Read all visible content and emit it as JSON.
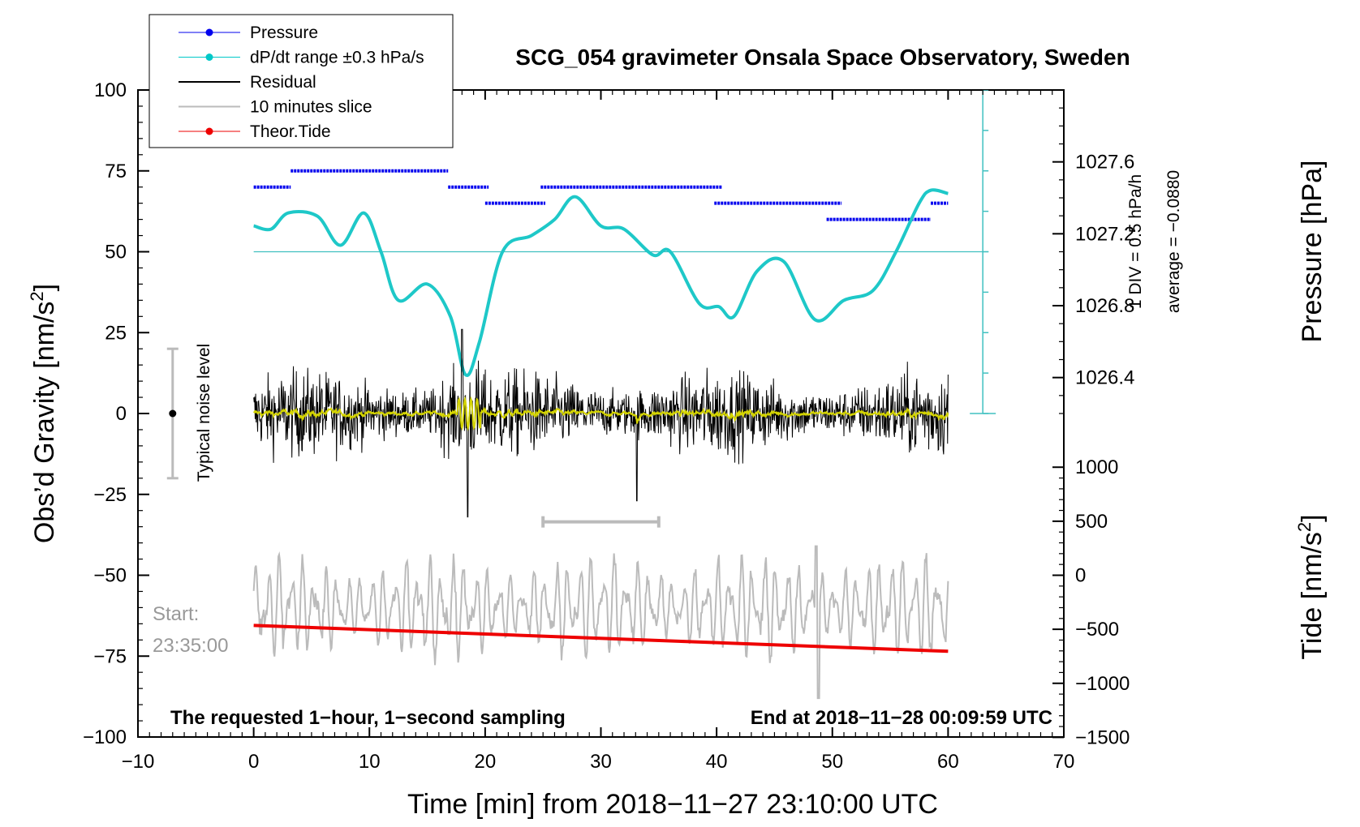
{
  "chart_data": {
    "type": "line",
    "title": "SCG_054 gravimeter Onsala Space Observatory, Sweden",
    "xlabel": "Time [min] from 2018−11−27 23:10:00 UTC",
    "ylabel": "Obs’d Gravity [nm/s²]",
    "ylabel_main": "Obs’d Gravity [nm/s",
    "ylabel_sup": "2",
    "ylabel_end": "]",
    "y2label": "Pressure [hPa]",
    "y3label": "Tide [nm/s²]",
    "y3label_main": "Tide [nm/s",
    "y3label_sup": "2",
    "y3label_end": "]",
    "xlim": [
      -10,
      70
    ],
    "ylim": [
      -100,
      100
    ],
    "xticks": [
      -10,
      0,
      10,
      20,
      30,
      40,
      50,
      60,
      70
    ],
    "xtick_labels": [
      "−10",
      "0",
      "10",
      "20",
      "30",
      "40",
      "50",
      "60",
      "70"
    ],
    "yticks": [
      100,
      75,
      50,
      25,
      0,
      -25,
      -50,
      -75,
      -100
    ],
    "ytick_labels": [
      "100",
      "75",
      "50",
      "25",
      "0",
      "−25",
      "−50",
      "−75",
      "−100"
    ],
    "pressure_axis": {
      "ticks": [
        1027.6,
        1027.2,
        1026.8,
        1026.4
      ],
      "labels": [
        "1027.6",
        "1027.2",
        "1026.8",
        "1026.4"
      ],
      "range_hpa": [
        1026.2,
        1028.0
      ]
    },
    "tide_axis": {
      "ticks": [
        1000,
        500,
        0,
        -500,
        -1000,
        -1500
      ],
      "labels": [
        "1000",
        "500",
        "0",
        "−500",
        "−1000",
        "−1500"
      ]
    },
    "legend": [
      {
        "label": "Pressure",
        "color": "#0000ee"
      },
      {
        "label": "dP/dt range ±0.3 hPa/s",
        "color": "#00c8c8"
      },
      {
        "label": "Residual",
        "color": "#000000"
      },
      {
        "label": "10 minutes slice",
        "color": "#bbbbbb"
      },
      {
        "label": "Theor.Tide",
        "color": "#ee0000"
      }
    ],
    "annotations": {
      "noise_label": "Typical noise level",
      "noise_range": [
        -20,
        20
      ],
      "scale_label": "1 DIV = 0.5 hPa/h",
      "average_label": "average = −0.0880",
      "start_label": "Start:",
      "start_time": "23:35:00",
      "bottom_left": "The requested 1−hour, 1−second sampling",
      "bottom_right": "End at 2018−11−28 00:09:59 UTC",
      "slice_bracket_min": [
        25,
        35
      ]
    },
    "pressure_steps": [
      {
        "level": 70,
        "x": [
          0,
          3.2
        ]
      },
      {
        "level": 75,
        "x": [
          3.2,
          16.8
        ]
      },
      {
        "level": 70,
        "x": [
          16.8,
          20.3
        ]
      },
      {
        "level": 65,
        "x": [
          20.0,
          25.2
        ]
      },
      {
        "level": 70,
        "x": [
          24.8,
          40.5
        ]
      },
      {
        "level": 65,
        "x": [
          39.8,
          50.8
        ]
      },
      {
        "level": 60,
        "x": [
          49.5,
          58.5
        ]
      },
      {
        "level": 65,
        "x": [
          58.5,
          60
        ]
      }
    ],
    "dpdt_series": {
      "baseline": 50,
      "x": [
        0,
        1.5,
        3,
        5.5,
        7.5,
        9.5,
        11,
        12.5,
        15,
        17,
        18.3,
        19.5,
        21.5,
        24,
        26,
        27.8,
        30,
        32,
        34.5,
        36,
        38.5,
        40.2,
        41.5,
        43.5,
        45.8,
        48.5,
        51,
        53.5,
        55.5,
        57.5,
        58.5,
        60
      ],
      "y": [
        58,
        57,
        62,
        61,
        52,
        62,
        50,
        35,
        40,
        30,
        12,
        22,
        50,
        55,
        60,
        67,
        58,
        57,
        49,
        50,
        34,
        33,
        30,
        44,
        47,
        29,
        35,
        38,
        50,
        65,
        69,
        68
      ]
    },
    "residual": {
      "x_range": [
        0,
        60
      ],
      "amplitude_nm_s2": 12,
      "peak_min": -32,
      "peak_max": 26
    },
    "slice": {
      "x_range": [
        0,
        60
      ],
      "center": -60,
      "amplitude": 14
    },
    "tide": {
      "x": [
        0,
        60
      ],
      "y": [
        -65.5,
        -73.5
      ]
    }
  },
  "colors": {
    "pressure": "#0000ee",
    "dpdt": "#1ec8c8",
    "dpdt_axis": "#40c0c0",
    "residual": "#000000",
    "yellow": "#d4d400",
    "slice": "#bbbbbb",
    "tide": "#ee0000",
    "start": "#999999"
  }
}
